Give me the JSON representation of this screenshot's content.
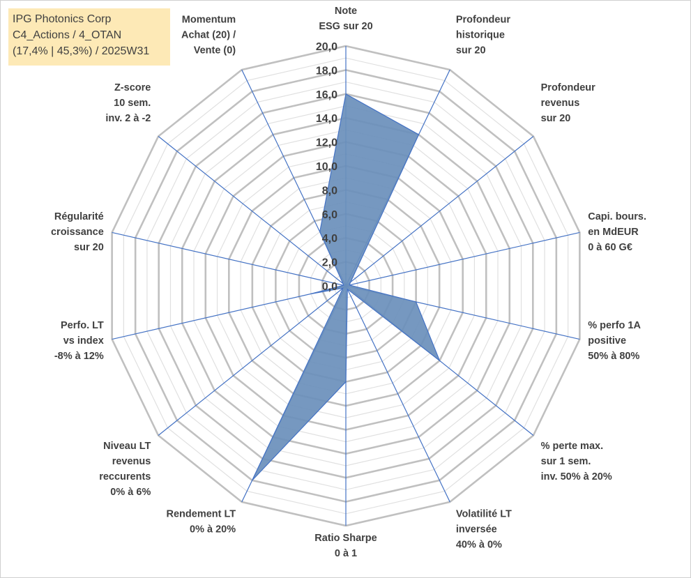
{
  "info": {
    "line1": "IPG Photonics Corp",
    "line2": "C4_Actions / 4_OTAN",
    "line3": "(17,4% | 45,3%) / 2025W31"
  },
  "colors": {
    "series_fill": "#6a8fbb",
    "series_stroke": "#4472c4",
    "spoke": "#4472c4",
    "grid_major": "#c0c0c0",
    "grid_minor": "#e0e0e0",
    "info_bg": "#fde9b6",
    "text": "#404040"
  },
  "chart_data": {
    "type": "radar",
    "rmin": 0,
    "rmax": 20,
    "ticks": [
      "0,0",
      "2,0",
      "4,0",
      "6,0",
      "8,0",
      "10,0",
      "12,0",
      "14,0",
      "16,0",
      "18,0",
      "20,0"
    ],
    "grid": true,
    "axes": [
      {
        "label": [
          "Note",
          "ESG sur 20"
        ],
        "value": 16.0
      },
      {
        "label": [
          "Profondeur",
          "historique",
          "sur 20"
        ],
        "value": 14.0
      },
      {
        "label": [
          "Profondeur",
          "revenus",
          "sur 20"
        ],
        "value": 0.5
      },
      {
        "label": [
          "Capi. bours.",
          "en MdEUR",
          "0 à 60 G€"
        ],
        "value": 0.3
      },
      {
        "label": [
          "% perfo 1A",
          "positive",
          "50% à 80%"
        ],
        "value": 6.0
      },
      {
        "label": [
          "% perte max.",
          "sur 1 sem.",
          "inv. 50% à 20%"
        ],
        "value": 10.0
      },
      {
        "label": [
          "Volatilité LT",
          "inversée",
          "40% à 0%"
        ],
        "value": 0.3
      },
      {
        "label": [
          "Ratio Sharpe",
          "0 à 1"
        ],
        "value": 8.0
      },
      {
        "label": [
          "Rendement LT",
          "0% à 20%"
        ],
        "value": 18.0
      },
      {
        "label": [
          "Niveau LT",
          "revenus",
          "reccurents",
          "0% à 6%"
        ],
        "value": 0.3
      },
      {
        "label": [
          "Perfo. LT",
          "vs index",
          "-8% à 12%"
        ],
        "value": 3.0
      },
      {
        "label": [
          "Régularité",
          "croissance",
          "sur 20"
        ],
        "value": 0.2
      },
      {
        "label": [
          "Z-score",
          "10 sem.",
          "inv. 2 à -2"
        ],
        "value": 0.3
      },
      {
        "label": [
          "Momentum",
          "Achat (20) /",
          "Vente (0)"
        ],
        "value": 5.0
      }
    ]
  }
}
